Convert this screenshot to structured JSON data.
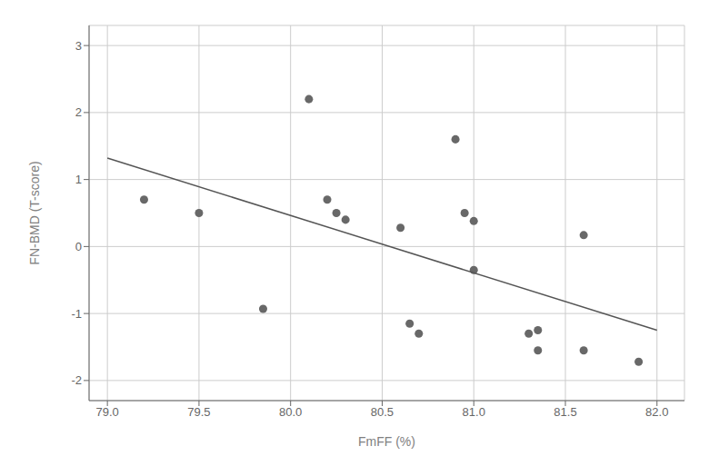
{
  "chart_data": {
    "type": "scatter",
    "xlabel": "FmFF (%)",
    "ylabel": "FN-BMD (T-score)",
    "series": [
      {
        "type": "scatter",
        "color": "#686868",
        "x": [
          79.2,
          79.5,
          79.85,
          80.1,
          80.2,
          80.25,
          80.3,
          80.6,
          80.65,
          80.7,
          80.9,
          80.95,
          81.0,
          81.0,
          81.3,
          81.35,
          81.35,
          81.6,
          81.6,
          81.9
        ],
        "values": [
          0.7,
          0.5,
          -0.93,
          2.2,
          0.7,
          0.5,
          0.4,
          0.28,
          -1.15,
          -1.3,
          1.6,
          0.5,
          -0.35,
          0.38,
          -1.3,
          -1.55,
          -1.25,
          0.17,
          -1.55,
          -1.72
        ]
      },
      {
        "type": "line",
        "color": "#555555",
        "x": [
          79.0,
          82.0
        ],
        "values": [
          1.32,
          -1.25
        ]
      }
    ],
    "xlim": [
      78.9,
      82.15
    ],
    "ylim": [
      -2.3,
      3.3
    ],
    "xticks": [
      {
        "value": 79,
        "label": "79.0"
      },
      79.5,
      {
        "value": 80,
        "label": "80.0"
      },
      80.5,
      {
        "value": 81,
        "label": "81.0"
      },
      81.5,
      {
        "value": 82,
        "label": "82.0"
      }
    ],
    "yticks": [
      -2,
      -1,
      0,
      1,
      2,
      3
    ],
    "grid": true
  }
}
